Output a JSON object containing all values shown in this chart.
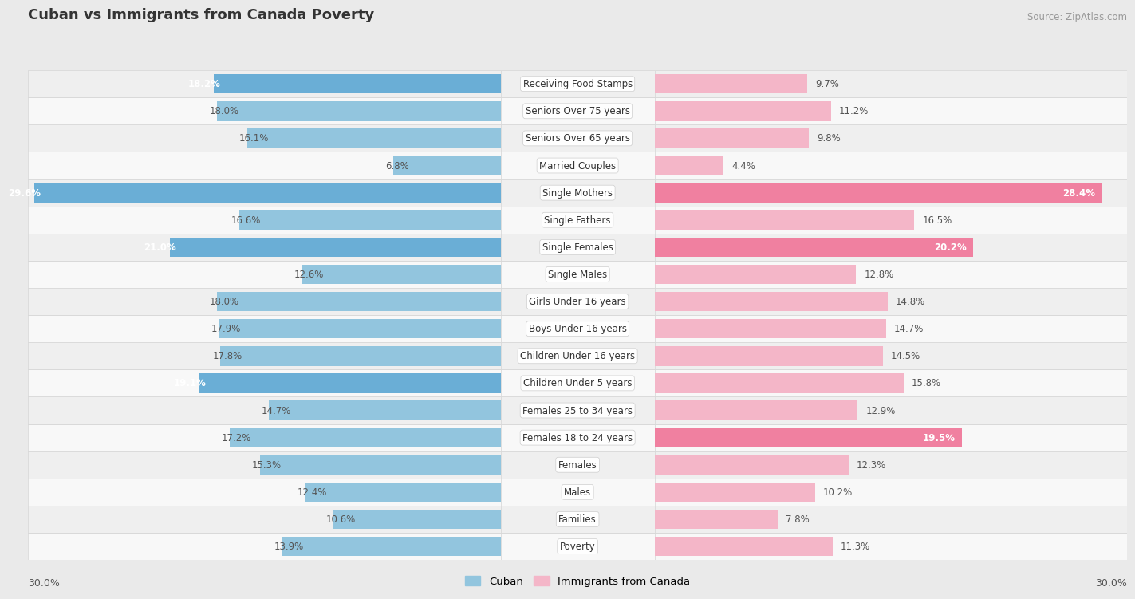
{
  "title": "Cuban vs Immigrants from Canada Poverty",
  "source": "Source: ZipAtlas.com",
  "categories": [
    "Poverty",
    "Families",
    "Males",
    "Females",
    "Females 18 to 24 years",
    "Females 25 to 34 years",
    "Children Under 5 years",
    "Children Under 16 years",
    "Boys Under 16 years",
    "Girls Under 16 years",
    "Single Males",
    "Single Females",
    "Single Fathers",
    "Single Mothers",
    "Married Couples",
    "Seniors Over 65 years",
    "Seniors Over 75 years",
    "Receiving Food Stamps"
  ],
  "cuban_values": [
    13.9,
    10.6,
    12.4,
    15.3,
    17.2,
    14.7,
    19.1,
    17.8,
    17.9,
    18.0,
    12.6,
    21.0,
    16.6,
    29.6,
    6.8,
    16.1,
    18.0,
    18.2
  ],
  "canada_values": [
    11.3,
    7.8,
    10.2,
    12.3,
    19.5,
    12.9,
    15.8,
    14.5,
    14.7,
    14.8,
    12.8,
    20.2,
    16.5,
    28.4,
    4.4,
    9.8,
    11.2,
    9.7
  ],
  "cuban_color_normal": "#92c5de",
  "cuban_color_highlight": "#6aaed6",
  "canada_color_normal": "#f4b6c8",
  "canada_color_highlight": "#f080a0",
  "background_color": "#eaeaea",
  "row_even_color": "#f8f8f8",
  "row_odd_color": "#efefef",
  "bar_height": 0.72,
  "max_value": 30.0,
  "legend_cuban": "Cuban",
  "legend_canada": "Immigrants from Canada",
  "cuban_highlight_indices": [
    6,
    11,
    13,
    17
  ],
  "canada_highlight_indices": [
    4,
    11,
    13
  ]
}
